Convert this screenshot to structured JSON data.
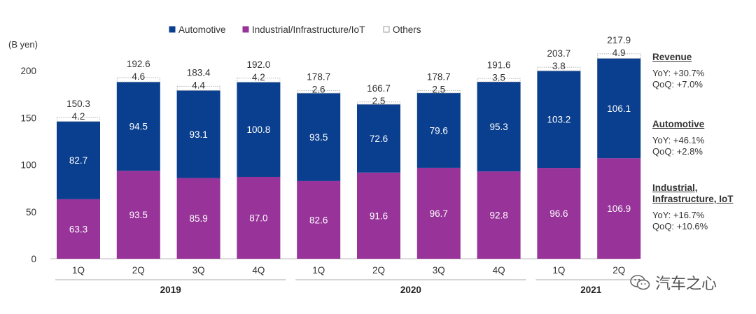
{
  "chart_data": {
    "type": "bar",
    "stacked": true,
    "ylabel": "(B yen)",
    "ylim": [
      0,
      200
    ],
    "yticks": [
      0,
      50,
      100,
      150,
      200
    ],
    "categories": [
      "1Q",
      "2Q",
      "3Q",
      "4Q",
      "1Q",
      "2Q",
      "3Q",
      "4Q",
      "1Q",
      "2Q"
    ],
    "year_groups": [
      {
        "label": "2019",
        "start": 0,
        "end": 3
      },
      {
        "label": "2020",
        "start": 4,
        "end": 7
      },
      {
        "label": "2021",
        "start": 8,
        "end": 9
      }
    ],
    "legend_position": "top",
    "series": [
      {
        "name": "Industrial/Infrastructure/IoT",
        "color": "#973399",
        "values": [
          63.3,
          93.5,
          85.9,
          87.0,
          82.6,
          91.6,
          96.7,
          92.8,
          96.6,
          106.9
        ],
        "labels": [
          "63.3",
          "93.5",
          "85.9",
          "87.0",
          "82.6",
          "91.6",
          "96.7",
          "92.8",
          "96.6",
          "106.9"
        ]
      },
      {
        "name": "Automotive",
        "color": "#0a3f8f",
        "values": [
          82.7,
          94.5,
          93.1,
          100.8,
          93.5,
          72.6,
          79.6,
          95.3,
          103.2,
          106.1
        ],
        "labels": [
          "82.7",
          "94.5",
          "93.1",
          "100.8",
          "93.5",
          "72.6",
          "79.6",
          "95.3",
          "103.2",
          "106.1"
        ]
      },
      {
        "name": "Others",
        "color": "#ffffff",
        "values": [
          4.2,
          4.6,
          4.4,
          4.2,
          2.6,
          2.5,
          2.5,
          3.5,
          3.8,
          4.9
        ],
        "labels": [
          "4.2",
          "4.6",
          "4.4",
          "4.2",
          "2.6",
          "2.5",
          "2.5",
          "3.5",
          "3.8",
          "4.9"
        ]
      }
    ],
    "legend_order": [
      "Automotive",
      "Industrial/Infrastructure/IoT",
      "Others"
    ],
    "totals": [
      "150.3",
      "192.6",
      "183.4",
      "192.0",
      "178.7",
      "166.7",
      "178.7",
      "191.6",
      "203.7",
      "217.9"
    ]
  },
  "side_panel": {
    "revenue": {
      "title": "Revenue",
      "yoy": "YoY: +30.7%",
      "qoq": "QoQ: +7.0%"
    },
    "automotive": {
      "title": "Automotive",
      "yoy": "YoY: +46.1%",
      "qoq": "QoQ: +2.8%"
    },
    "industrial": {
      "title_line1": "Industrial,",
      "title_line2": "Infrastructure, IoT",
      "yoy": "YoY: +16.7%",
      "qoq": "QoQ: +10.6%"
    }
  },
  "watermark": {
    "text": "汽车之心",
    "icon": "wechat-icon"
  }
}
